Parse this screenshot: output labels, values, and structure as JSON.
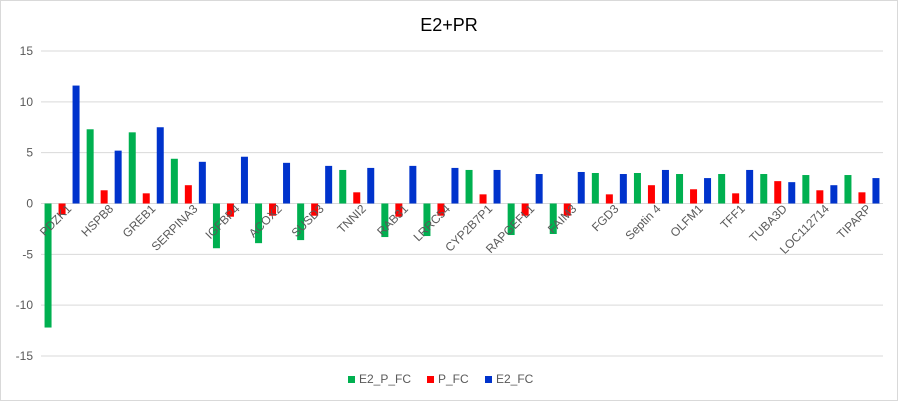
{
  "chart_data": {
    "type": "bar",
    "title": "E2+PR",
    "xlabel": "",
    "ylabel": "",
    "ylim": [
      -15,
      15
    ],
    "yticks": [
      -15,
      -10,
      -5,
      0,
      5,
      10,
      15
    ],
    "grid": true,
    "legend_position": "bottom",
    "categories": [
      "PDZK1",
      "HSPB8",
      "GREB1",
      "SERPINA3",
      "IGFBP4",
      "ACOX2",
      "SUSD3",
      "TNNI2",
      "RAB31",
      "LRRC54",
      "CYP2B7P1",
      "RAPGEFL1",
      "FAIM3",
      "FGD3",
      "Septin 4",
      "OLFM1",
      "TFF1",
      "TUBA3D",
      "LOC112714",
      "TIPARP"
    ],
    "series": [
      {
        "name": "E2_P_FC",
        "color": "#00b050",
        "values": [
          -12.2,
          7.3,
          7.0,
          4.4,
          -4.4,
          -3.9,
          -3.6,
          3.3,
          -3.3,
          -3.2,
          3.3,
          -3.1,
          -3.0,
          3.0,
          3.0,
          2.9,
          2.9,
          2.9,
          2.8,
          2.8
        ]
      },
      {
        "name": "P_FC",
        "color": "#ff0000",
        "values": [
          -1.1,
          1.3,
          1.0,
          1.8,
          -1.3,
          -1.2,
          -1.2,
          1.1,
          -1.3,
          -1.2,
          0.9,
          -1.2,
          -1.2,
          0.9,
          1.8,
          1.4,
          1.0,
          2.2,
          1.3,
          1.1
        ]
      },
      {
        "name": "E2_FC",
        "color": "#0033cc",
        "values": [
          11.6,
          5.2,
          7.5,
          4.1,
          4.6,
          4.0,
          3.7,
          3.5,
          3.7,
          3.5,
          3.3,
          2.9,
          3.1,
          2.9,
          3.3,
          2.5,
          3.3,
          2.1,
          1.8,
          2.5
        ]
      }
    ]
  }
}
